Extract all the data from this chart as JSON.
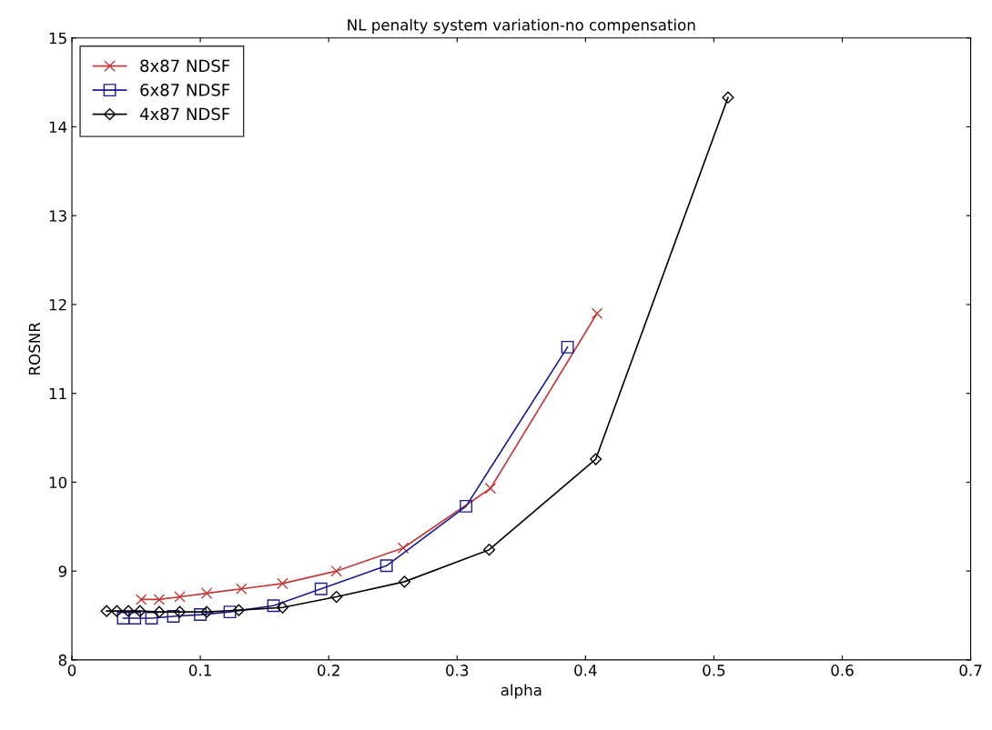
{
  "chart_data": {
    "type": "line",
    "title": "NL penalty system variation-no compensation",
    "xlabel": "alpha",
    "ylabel": "ROSNR",
    "xlim": [
      0,
      0.7
    ],
    "xticks": [
      0,
      0.1,
      0.2,
      0.3,
      0.4,
      0.5,
      0.6,
      0.7
    ],
    "ylim": [
      8,
      15
    ],
    "yticks": [
      8,
      9,
      10,
      11,
      12,
      13,
      14,
      15
    ],
    "grid": false,
    "legend": "top left",
    "series": [
      {
        "name": "8x87 NDSF",
        "color": "#c03a3a",
        "marker": "cross",
        "x": [
          0.054,
          0.068,
          0.084,
          0.105,
          0.132,
          0.164,
          0.206,
          0.258,
          0.326,
          0.409
        ],
        "values": [
          8.68,
          8.68,
          8.71,
          8.75,
          8.8,
          8.86,
          9.0,
          9.26,
          9.93,
          11.9
        ]
      },
      {
        "name": "6x87 NDSF",
        "color": "#1c1c8c",
        "marker": "square",
        "x": [
          0.04,
          0.049,
          0.062,
          0.079,
          0.1,
          0.123,
          0.157,
          0.194,
          0.245,
          0.307,
          0.386
        ],
        "values": [
          8.47,
          8.47,
          8.47,
          8.49,
          8.51,
          8.54,
          8.61,
          8.8,
          9.06,
          9.73,
          11.52
        ]
      },
      {
        "name": "4x87 NDSF",
        "color": "#000000",
        "marker": "diamond",
        "x": [
          0.027,
          0.035,
          0.044,
          0.053,
          0.068,
          0.084,
          0.105,
          0.13,
          0.164,
          0.206,
          0.259,
          0.325,
          0.408,
          0.511
        ],
        "values": [
          8.55,
          8.55,
          8.55,
          8.55,
          8.54,
          8.54,
          8.54,
          8.56,
          8.59,
          8.71,
          8.88,
          9.24,
          10.26,
          14.33
        ]
      }
    ]
  }
}
